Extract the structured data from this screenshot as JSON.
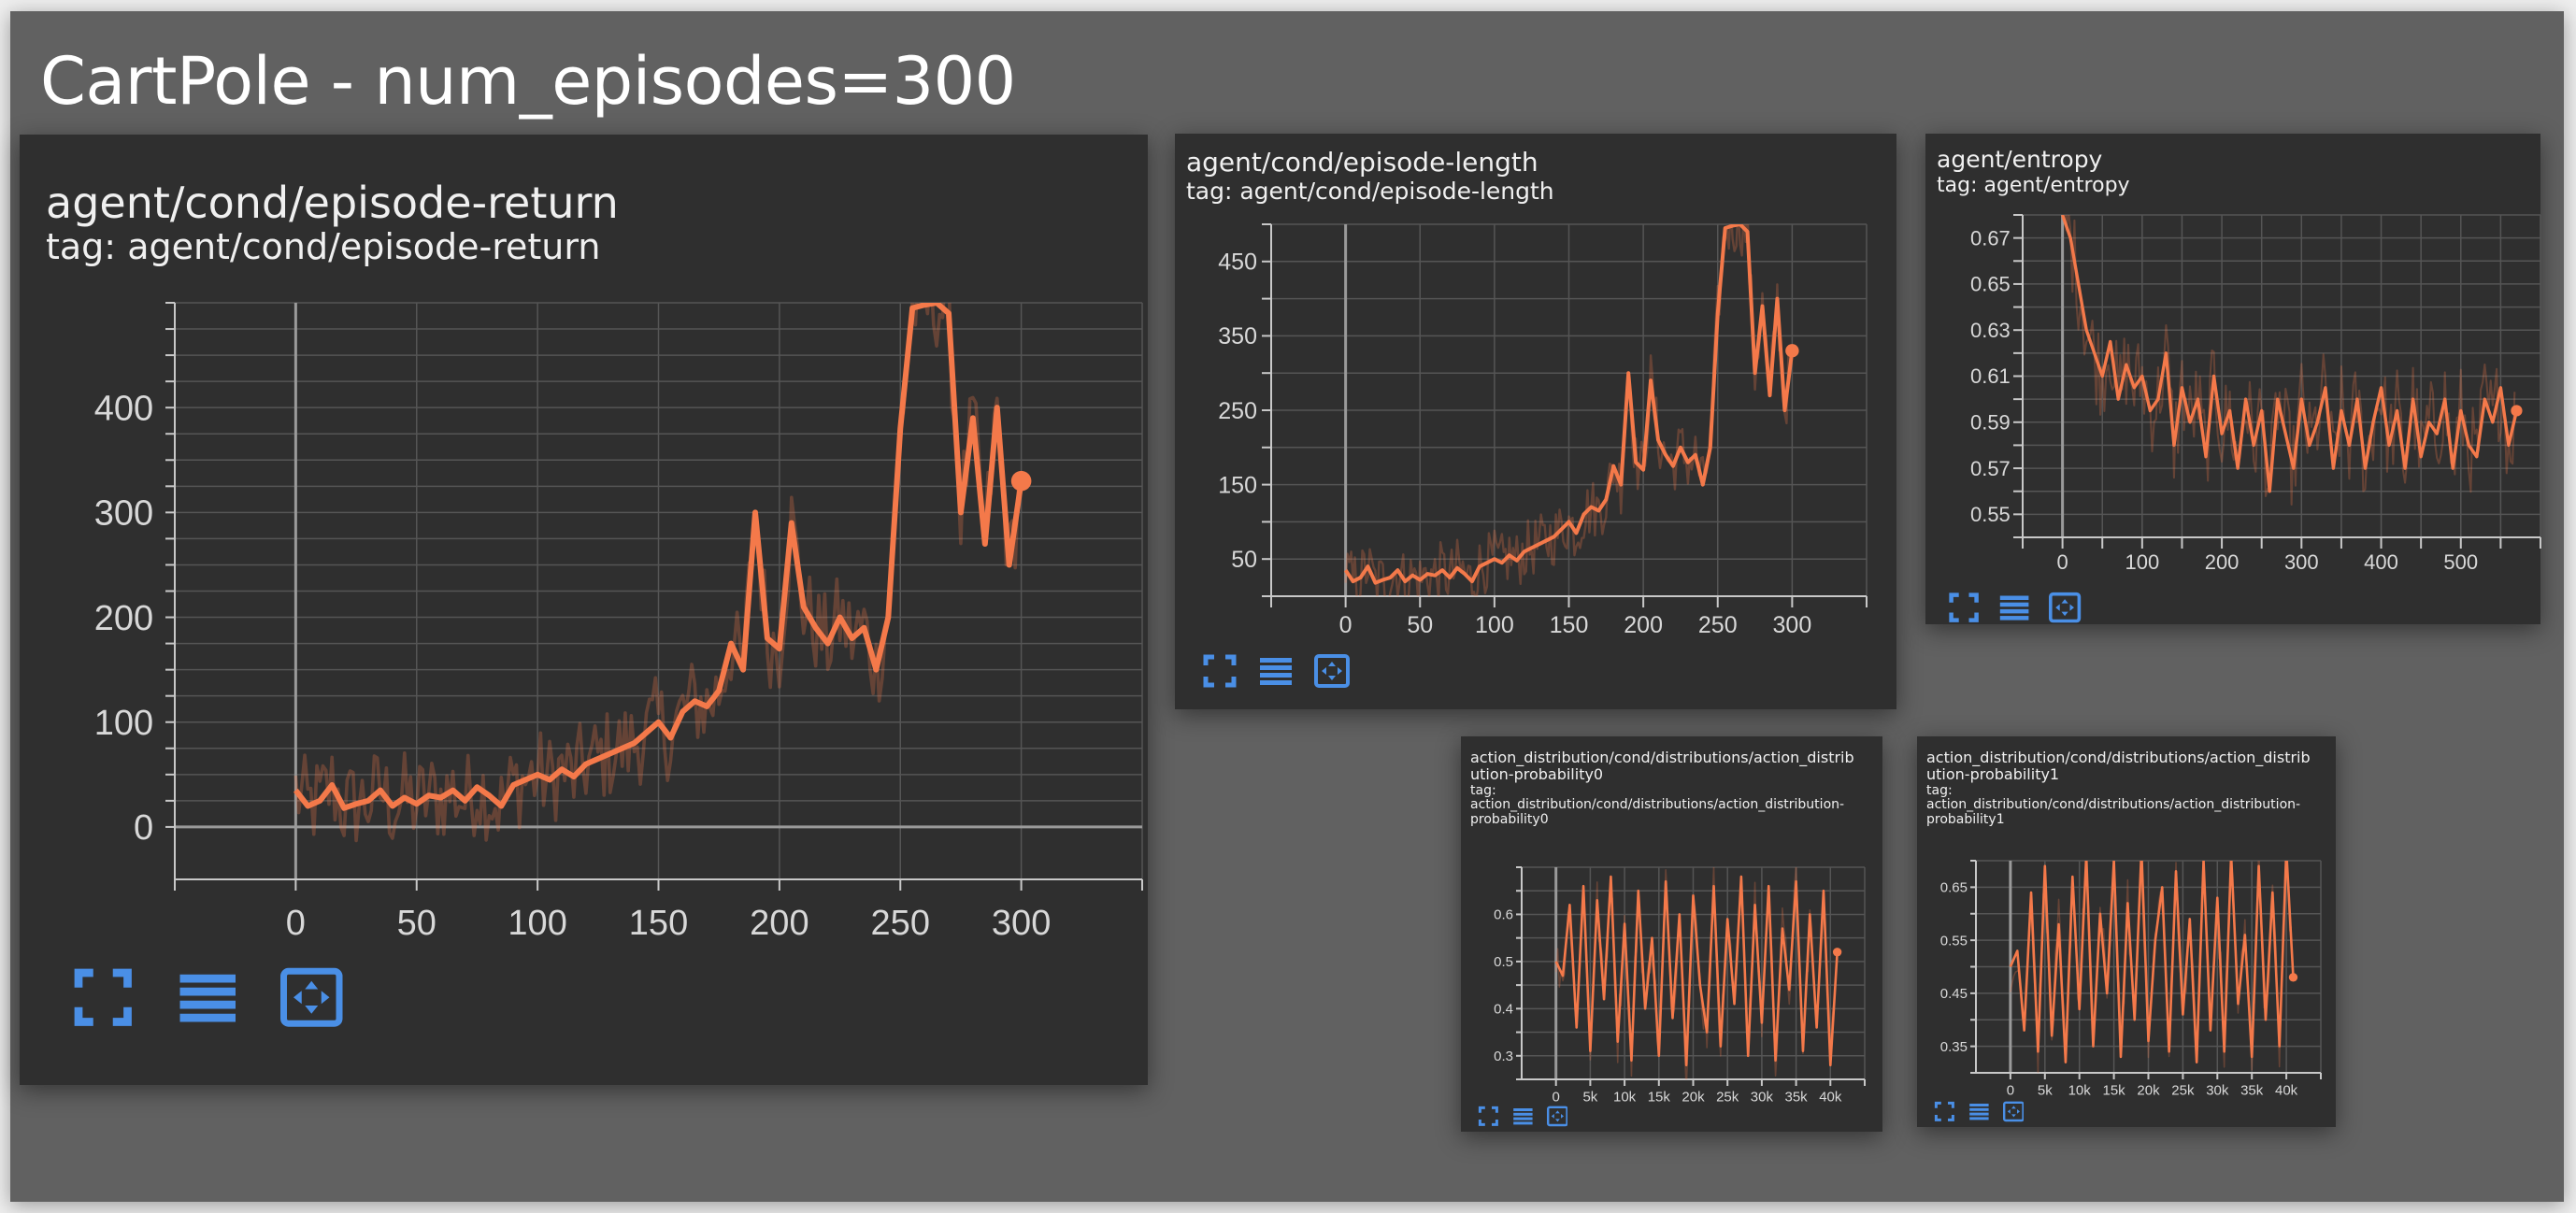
{
  "page": {
    "title": "CartPole - num_episodes=300"
  },
  "accent": "#f4794a",
  "icon_color": "#4a8fe6",
  "icons": [
    "fullscreen-icon",
    "data-table-icon",
    "fit-domain-icon"
  ],
  "chart_data": [
    {
      "id": "episode-return",
      "type": "line",
      "title": "agent/cond/episode-return",
      "tag": "tag: agent/cond/episode-return",
      "xlim": [
        -50,
        350
      ],
      "ylim": [
        -50,
        500
      ],
      "xticks": [
        0,
        50,
        100,
        150,
        200,
        250,
        300
      ],
      "yticks": [
        0,
        100,
        200,
        300,
        400
      ],
      "grid_x": [
        -50,
        0,
        50,
        100,
        150,
        200,
        250,
        300,
        350
      ],
      "grid_y": [
        0,
        25,
        50,
        75,
        100,
        125,
        150,
        175,
        200,
        225,
        250,
        275,
        300,
        325,
        350,
        375,
        400,
        425,
        450,
        475,
        500
      ],
      "raw_noise": 45,
      "series": [
        {
          "x": [
            0,
            5,
            10,
            15,
            20,
            25,
            30,
            35,
            40,
            45,
            50,
            55,
            60,
            65,
            70,
            75,
            80,
            85,
            90,
            95,
            100,
            105,
            110,
            115,
            120,
            125,
            130,
            135,
            140,
            145,
            150,
            155,
            160,
            165,
            170,
            175,
            180,
            185,
            190,
            195,
            200,
            205,
            210,
            215,
            220,
            225,
            230,
            235,
            240,
            245,
            250,
            255,
            260,
            265,
            270,
            275,
            280,
            285,
            290,
            295,
            300
          ],
          "y": [
            35,
            20,
            25,
            40,
            18,
            22,
            25,
            35,
            20,
            28,
            22,
            30,
            28,
            35,
            25,
            38,
            30,
            20,
            40,
            45,
            50,
            45,
            55,
            48,
            60,
            65,
            70,
            75,
            80,
            90,
            100,
            85,
            110,
            120,
            115,
            130,
            175,
            150,
            300,
            180,
            170,
            290,
            210,
            190,
            175,
            200,
            180,
            190,
            150,
            200,
            380,
            495,
            498,
            500,
            490,
            300,
            390,
            270,
            400,
            250,
            330
          ]
        }
      ]
    },
    {
      "id": "episode-length",
      "type": "line",
      "title": "agent/cond/episode-length",
      "tag": "tag: agent/cond/episode-length",
      "xlim": [
        -50,
        350
      ],
      "ylim": [
        0,
        500
      ],
      "xticks": [
        0,
        50,
        100,
        150,
        200,
        250,
        300
      ],
      "yticks": [
        50,
        150,
        250,
        350,
        450
      ],
      "grid_x": [
        -50,
        0,
        50,
        100,
        150,
        200,
        250,
        300,
        350
      ],
      "grid_y": [
        0,
        50,
        100,
        150,
        200,
        250,
        300,
        350,
        400,
        450,
        500
      ],
      "raw_noise": 40,
      "series": [
        {
          "x": [
            0,
            5,
            10,
            15,
            20,
            25,
            30,
            35,
            40,
            45,
            50,
            55,
            60,
            65,
            70,
            75,
            80,
            85,
            90,
            95,
            100,
            105,
            110,
            115,
            120,
            125,
            130,
            135,
            140,
            145,
            150,
            155,
            160,
            165,
            170,
            175,
            180,
            185,
            190,
            195,
            200,
            205,
            210,
            215,
            220,
            225,
            230,
            235,
            240,
            245,
            250,
            255,
            260,
            265,
            270,
            275,
            280,
            285,
            290,
            295,
            300
          ],
          "y": [
            35,
            20,
            25,
            40,
            18,
            22,
            25,
            35,
            20,
            28,
            22,
            30,
            28,
            35,
            25,
            38,
            30,
            20,
            40,
            45,
            50,
            45,
            55,
            48,
            60,
            65,
            70,
            75,
            80,
            90,
            100,
            85,
            110,
            120,
            115,
            130,
            175,
            150,
            300,
            180,
            170,
            290,
            210,
            190,
            175,
            200,
            180,
            190,
            150,
            200,
            380,
            495,
            498,
            500,
            490,
            300,
            390,
            270,
            400,
            250,
            330
          ]
        }
      ]
    },
    {
      "id": "entropy",
      "type": "line",
      "title": "agent/entropy",
      "tag": "tag: agent/entropy",
      "xlim": [
        -50,
        600
      ],
      "ylim": [
        0.54,
        0.68
      ],
      "xticks": [
        0,
        100,
        200,
        300,
        400,
        500
      ],
      "yticks": [
        0.55,
        0.57,
        0.59,
        0.61,
        0.63,
        0.65,
        0.67
      ],
      "grid_x": [
        -50,
        0,
        50,
        100,
        150,
        200,
        250,
        300,
        350,
        400,
        450,
        500,
        550,
        600
      ],
      "grid_y": [
        0.54,
        0.55,
        0.56,
        0.57,
        0.58,
        0.59,
        0.6,
        0.61,
        0.62,
        0.63,
        0.64,
        0.65,
        0.66,
        0.67,
        0.68
      ],
      "raw_noise": 0.02,
      "series": [
        {
          "x": [
            0,
            10,
            20,
            30,
            40,
            50,
            60,
            70,
            80,
            90,
            100,
            110,
            120,
            130,
            140,
            150,
            160,
            170,
            180,
            190,
            200,
            210,
            220,
            230,
            240,
            250,
            260,
            270,
            280,
            290,
            300,
            310,
            320,
            330,
            340,
            350,
            360,
            370,
            380,
            390,
            400,
            410,
            420,
            430,
            440,
            450,
            460,
            470,
            480,
            490,
            500,
            510,
            520,
            530,
            540,
            550,
            560,
            570
          ],
          "y": [
            0.68,
            0.67,
            0.65,
            0.63,
            0.62,
            0.61,
            0.625,
            0.6,
            0.615,
            0.605,
            0.61,
            0.595,
            0.6,
            0.62,
            0.58,
            0.605,
            0.59,
            0.6,
            0.575,
            0.61,
            0.585,
            0.595,
            0.57,
            0.6,
            0.58,
            0.595,
            0.56,
            0.6,
            0.585,
            0.57,
            0.6,
            0.58,
            0.59,
            0.605,
            0.57,
            0.595,
            0.58,
            0.6,
            0.57,
            0.59,
            0.605,
            0.58,
            0.595,
            0.57,
            0.6,
            0.575,
            0.59,
            0.585,
            0.6,
            0.57,
            0.595,
            0.58,
            0.575,
            0.6,
            0.59,
            0.605,
            0.58,
            0.595
          ]
        }
      ]
    },
    {
      "id": "action-probability0",
      "type": "line",
      "title": "action_distribution/cond/distributions/action_distrib\nution-probability0",
      "tag": "tag:\naction_distribution/cond/distributions/action_distribution-\nprobability0",
      "xlim": [
        -5000,
        45000
      ],
      "ylim": [
        0.25,
        0.7
      ],
      "xticks": [
        0,
        5000,
        10000,
        15000,
        20000,
        25000,
        30000,
        35000,
        40000
      ],
      "xtick_labels": [
        "0",
        "5k",
        "10k",
        "15k",
        "20k",
        "25k",
        "30k",
        "35k",
        "40k"
      ],
      "yticks": [
        0.3,
        0.4,
        0.5,
        0.6
      ],
      "grid_x": [
        0,
        5000,
        10000,
        15000,
        20000,
        25000,
        30000,
        35000,
        40000,
        45000
      ],
      "grid_y": [
        0.25,
        0.3,
        0.35,
        0.4,
        0.45,
        0.5,
        0.55,
        0.6,
        0.65,
        0.7
      ],
      "raw_noise": 0.05,
      "series": [
        {
          "x": [
            0,
            1000,
            2000,
            3000,
            4000,
            5000,
            6000,
            7000,
            8000,
            9000,
            10000,
            11000,
            12000,
            13000,
            14000,
            15000,
            16000,
            17000,
            18000,
            19000,
            20000,
            21000,
            22000,
            23000,
            24000,
            25000,
            26000,
            27000,
            28000,
            29000,
            30000,
            31000,
            32000,
            33000,
            34000,
            35000,
            36000,
            37000,
            38000,
            39000,
            40000,
            41000
          ],
          "y": [
            0.5,
            0.47,
            0.62,
            0.36,
            0.66,
            0.31,
            0.63,
            0.42,
            0.68,
            0.33,
            0.58,
            0.29,
            0.65,
            0.4,
            0.55,
            0.3,
            0.67,
            0.38,
            0.6,
            0.28,
            0.64,
            0.45,
            0.35,
            0.66,
            0.32,
            0.59,
            0.41,
            0.68,
            0.3,
            0.62,
            0.37,
            0.66,
            0.29,
            0.57,
            0.44,
            0.67,
            0.31,
            0.6,
            0.36,
            0.65,
            0.28,
            0.52
          ]
        }
      ]
    },
    {
      "id": "action-probability1",
      "type": "line",
      "title": "action_distribution/cond/distributions/action_distrib\nution-probability1",
      "tag": "tag:\naction_distribution/cond/distributions/action_distribution-\nprobability1",
      "xlim": [
        -5000,
        45000
      ],
      "ylim": [
        0.3,
        0.7
      ],
      "xticks": [
        0,
        5000,
        10000,
        15000,
        20000,
        25000,
        30000,
        35000,
        40000
      ],
      "xtick_labels": [
        "0",
        "5k",
        "10k",
        "15k",
        "20k",
        "25k",
        "30k",
        "35k",
        "40k"
      ],
      "yticks": [
        0.35,
        0.45,
        0.55,
        0.65
      ],
      "grid_x": [
        0,
        5000,
        10000,
        15000,
        20000,
        25000,
        30000,
        35000,
        40000,
        45000
      ],
      "grid_y": [
        0.3,
        0.35,
        0.4,
        0.45,
        0.5,
        0.55,
        0.6,
        0.65,
        0.7
      ],
      "raw_noise": 0.05,
      "series": [
        {
          "x": [
            0,
            1000,
            2000,
            3000,
            4000,
            5000,
            6000,
            7000,
            8000,
            9000,
            10000,
            11000,
            12000,
            13000,
            14000,
            15000,
            16000,
            17000,
            18000,
            19000,
            20000,
            21000,
            22000,
            23000,
            24000,
            25000,
            26000,
            27000,
            28000,
            29000,
            30000,
            31000,
            32000,
            33000,
            34000,
            35000,
            36000,
            37000,
            38000,
            39000,
            40000,
            41000
          ],
          "y": [
            0.5,
            0.53,
            0.38,
            0.64,
            0.34,
            0.69,
            0.37,
            0.58,
            0.32,
            0.67,
            0.42,
            0.71,
            0.35,
            0.6,
            0.45,
            0.7,
            0.33,
            0.62,
            0.4,
            0.72,
            0.36,
            0.55,
            0.65,
            0.34,
            0.68,
            0.41,
            0.59,
            0.32,
            0.7,
            0.38,
            0.63,
            0.34,
            0.71,
            0.43,
            0.56,
            0.33,
            0.69,
            0.4,
            0.64,
            0.35,
            0.72,
            0.48
          ]
        }
      ]
    }
  ]
}
